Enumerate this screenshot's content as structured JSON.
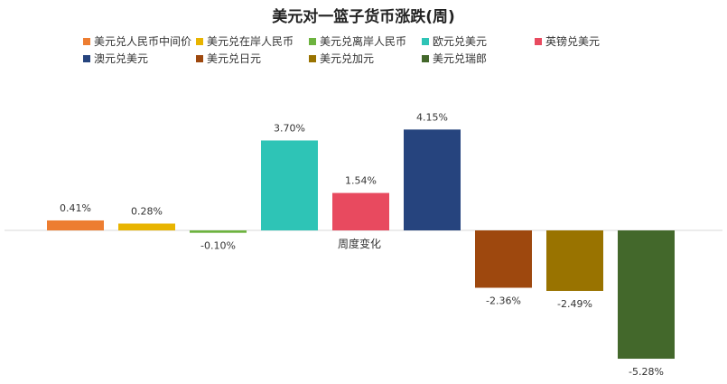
{
  "chart_data": {
    "type": "bar",
    "title": "美元对一篮子货币涨跌(周)",
    "xlabel": "周度变化",
    "categories": [
      "美元兑人民币中间价",
      "美元兑在岸人民币",
      "美元兑离岸人民币",
      "欧元兑美元",
      "英镑兑美元",
      "澳元兑美元",
      "美元兑日元",
      "美元兑加元",
      "美元兑瑞郎"
    ],
    "values": [
      0.41,
      0.28,
      -0.1,
      3.7,
      1.54,
      4.15,
      -2.36,
      -2.49,
      -5.28
    ],
    "value_labels": [
      "0.41%",
      "0.28%",
      "-0.10%",
      "3.70%",
      "1.54%",
      "4.15%",
      "-2.36%",
      "-2.49%",
      "-5.28%"
    ],
    "colors": [
      "#ED7D31",
      "#E8B400",
      "#6DB33F",
      "#2EC4B6",
      "#E84A5F",
      "#26447E",
      "#9E480E",
      "#997300",
      "#43682B"
    ],
    "legend_position": "top",
    "grid": false
  }
}
